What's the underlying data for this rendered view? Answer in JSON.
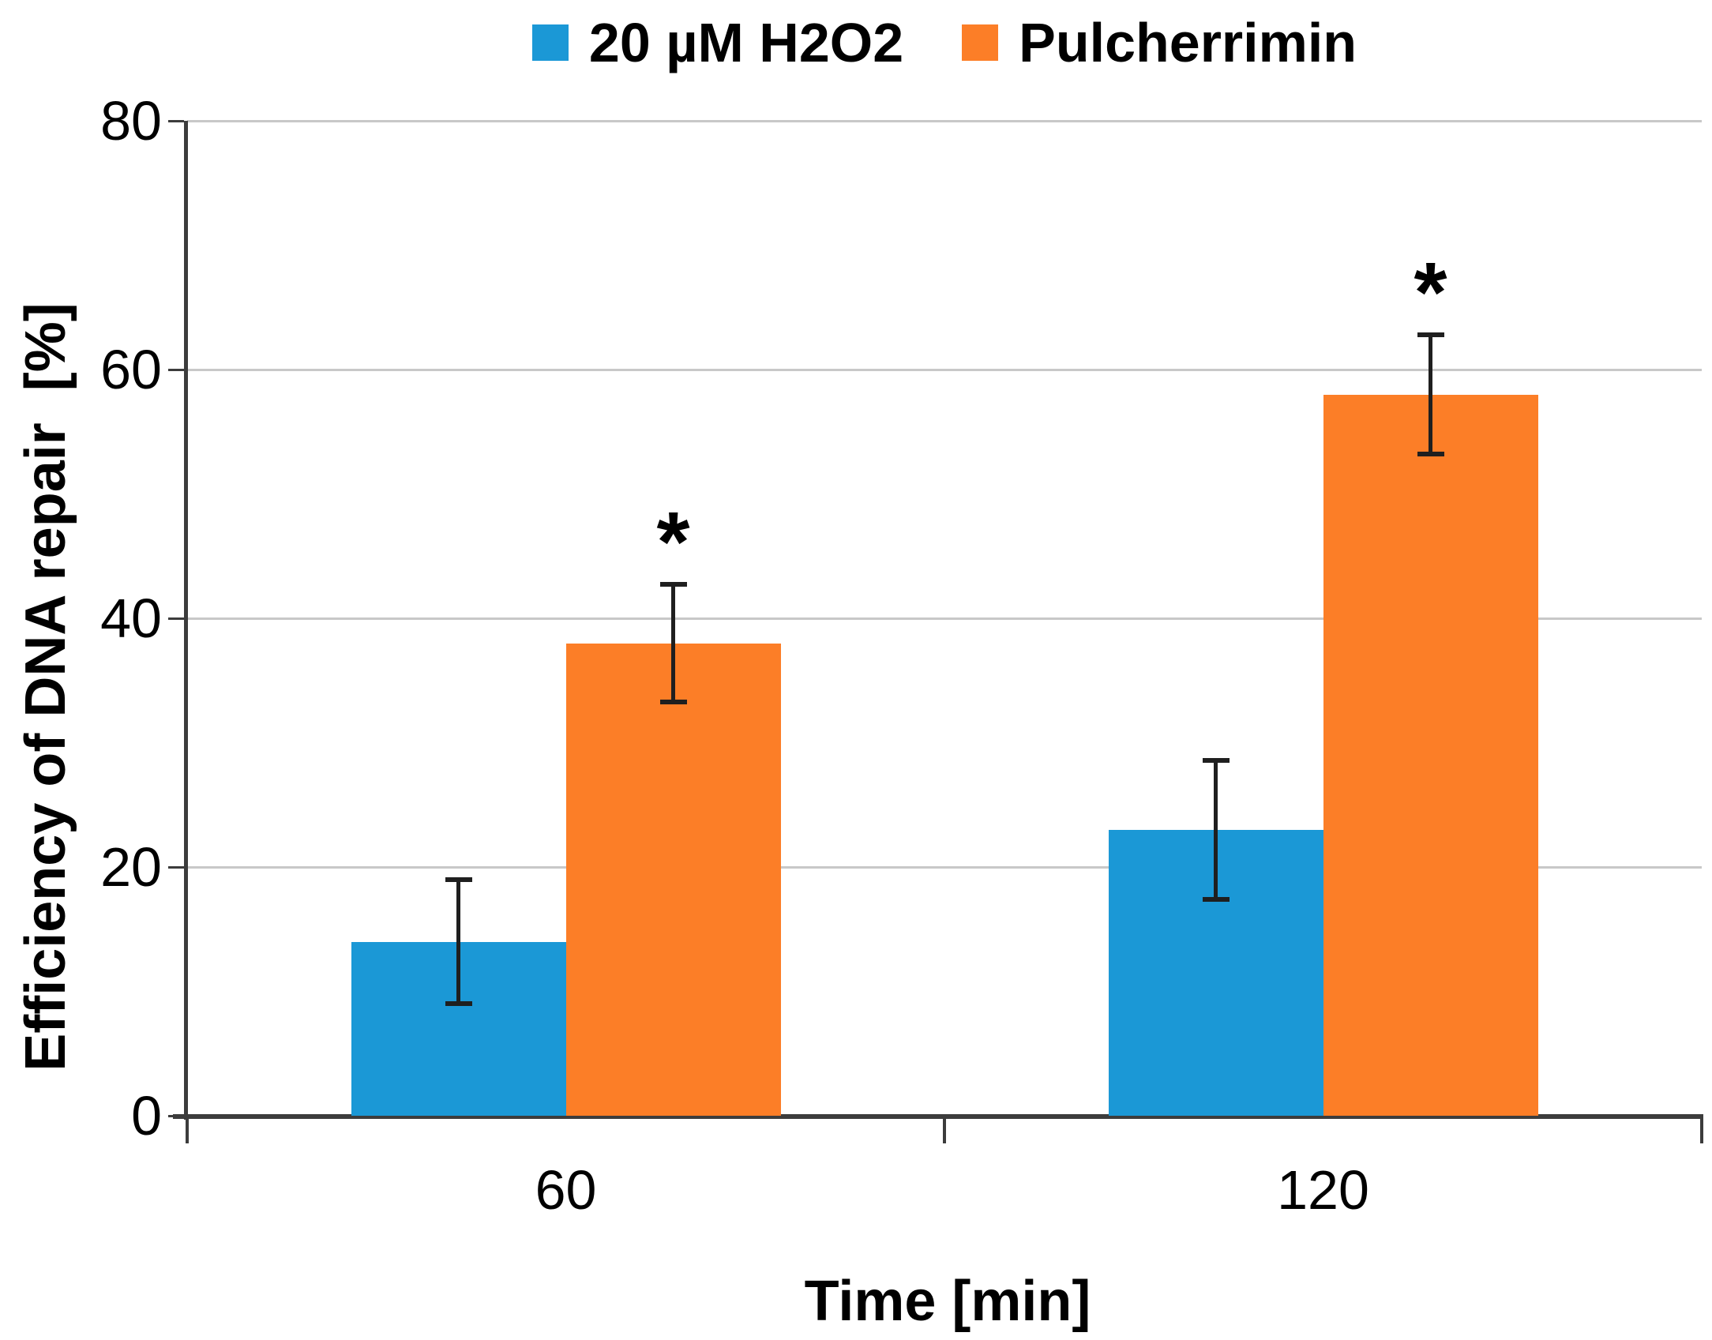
{
  "chart_data": {
    "type": "bar",
    "title": "",
    "categories": [
      "60",
      "120"
    ],
    "series": [
      {
        "name": "20 µM H2O2",
        "color": "#1B98D6",
        "values": [
          14,
          23
        ],
        "errors": [
          5,
          5.6
        ],
        "significance": [
          "",
          ""
        ]
      },
      {
        "name": "Pulcherrimin",
        "color": "#FC7E27",
        "values": [
          38,
          58
        ],
        "errors": [
          4.7,
          4.8
        ],
        "significance": [
          "*",
          "*"
        ]
      }
    ],
    "xlabel": "Time [min]",
    "ylabel": "Efficiency of DNA repair  [%]",
    "ylim": [
      0,
      80
    ],
    "ytick_step": 20,
    "yticks": [
      0,
      20,
      40,
      60,
      80
    ],
    "grid": "horizontal",
    "legend_position": "top",
    "colors": {
      "gridline": "#C8C8C8",
      "axis": "#3C3C3C",
      "error_bar": "#1F1F1F",
      "text": "#000000"
    }
  }
}
